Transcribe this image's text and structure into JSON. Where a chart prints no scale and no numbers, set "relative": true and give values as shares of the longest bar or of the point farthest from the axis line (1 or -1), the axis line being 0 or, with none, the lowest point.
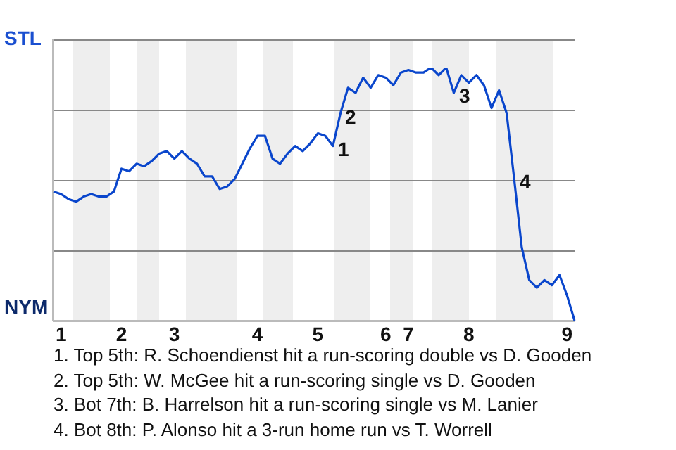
{
  "chart_data": {
    "type": "line",
    "relative": true,
    "categories": [
      null,
      "1",
      null,
      null,
      null,
      null,
      null,
      null,
      null,
      "2",
      null,
      null,
      null,
      null,
      null,
      null,
      "3",
      null,
      null,
      null,
      null,
      null,
      null,
      null,
      null,
      null,
      null,
      "4",
      null,
      null,
      null,
      null,
      null,
      null,
      null,
      "5",
      null,
      null,
      null,
      null,
      null,
      null,
      null,
      null,
      "6",
      null,
      null,
      "7",
      null,
      null,
      null,
      null,
      null,
      null,
      null,
      "8",
      null,
      null,
      null,
      null,
      null,
      null,
      null,
      null,
      null,
      null,
      null,
      null,
      "9",
      null
    ],
    "series": [
      {
        "color": "#0a46cc",
        "values": [
          0.51,
          0.5,
          0.48,
          0.47,
          0.49,
          0.5,
          0.49,
          0.49,
          0.51,
          0.6,
          0.59,
          0.62,
          0.61,
          0.63,
          0.66,
          0.67,
          0.64,
          0.67,
          0.64,
          0.62,
          0.57,
          0.57,
          0.52,
          0.53,
          0.56,
          0.62,
          0.68,
          0.73,
          0.73,
          0.64,
          0.62,
          0.66,
          0.69,
          0.67,
          0.7,
          0.74,
          0.73,
          0.69,
          0.82,
          0.92,
          0.9,
          0.96,
          0.92,
          0.97,
          0.96,
          0.93,
          0.98,
          0.99,
          0.98,
          0.98,
          1,
          0.97,
          1,
          0.9,
          0.97,
          0.94,
          0.97,
          0.93,
          0.84,
          0.91,
          0.82,
          0.56,
          0.29,
          0.16,
          0.13,
          0.16,
          0.14,
          0.18,
          0.1,
          0
        ]
      }
    ],
    "legend": false,
    "marker": "none",
    "line_style": "solid",
    "annotations": [
      "STL",
      "NYM",
      "1",
      "2",
      "3",
      "4",
      "1. Top 5th: R. Schoendienst hit a run-scoring double vs D. Gooden",
      "2. Top 5th: W. McGee hit a run-scoring single vs D. Gooden",
      "3. Bot 7th: B. Harrelson hit a run-scoring single vs M. Lanier",
      "4. Bot 8th: P. Alonso hit a 3-run home run vs T. Worrell"
    ]
  }
}
